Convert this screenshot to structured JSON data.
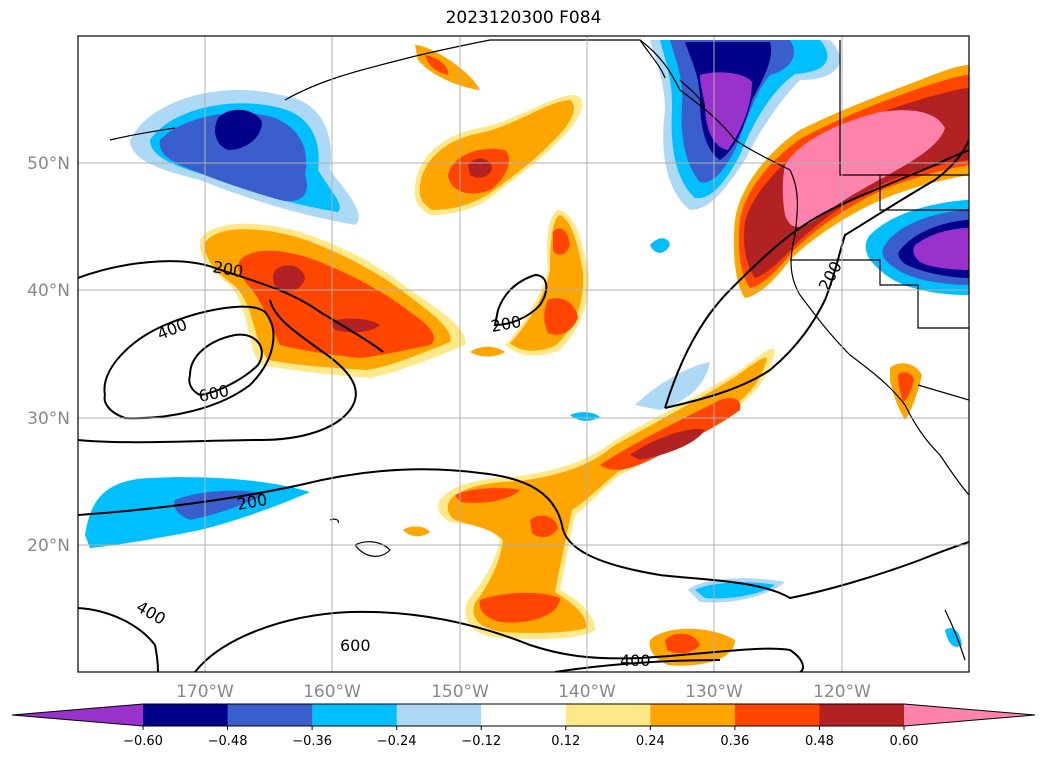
{
  "title": "2023120300 F084",
  "lat_ticks": [
    "50°N",
    "40°N",
    "30°N",
    "20°N"
  ],
  "lon_ticks": [
    "170°W",
    "160°W",
    "150°W",
    "140°W",
    "130°W",
    "120°W"
  ],
  "colorbar": {
    "ticks": [
      "−0.60",
      "−0.48",
      "−0.36",
      "−0.24",
      "−0.12",
      "0.12",
      "0.24",
      "0.36",
      "0.48",
      "0.60"
    ],
    "colors": [
      "#9932cc",
      "#00008b",
      "#3a5fcd",
      "#00bfff",
      "#add8f6",
      "#ffffff",
      "#ffe887",
      "#ffa500",
      "#ff4500",
      "#b22222",
      "#ff82ab"
    ]
  },
  "contour_labels": [
    {
      "text": "200"
    },
    {
      "text": "400"
    },
    {
      "text": "600"
    },
    {
      "text": "200"
    },
    {
      "text": "200"
    },
    {
      "text": "200"
    },
    {
      "text": "400"
    },
    {
      "text": "600"
    },
    {
      "text": "400"
    }
  ],
  "colors": {
    "frame": "#000000",
    "grid": "#b0b0b0",
    "axis_text": "#888888"
  }
}
